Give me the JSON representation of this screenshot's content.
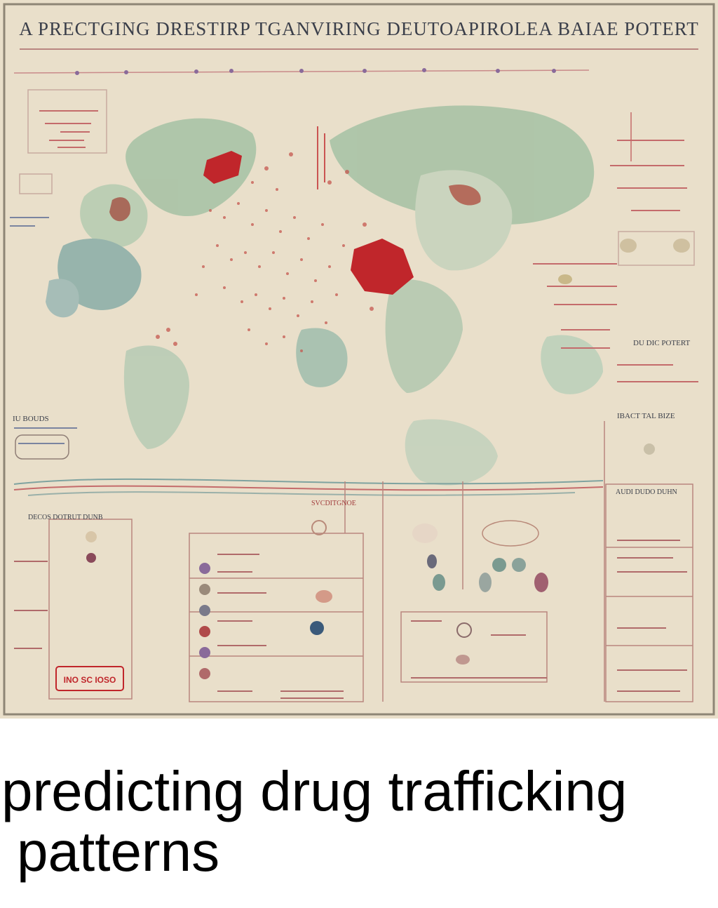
{
  "poster": {
    "title": "A PRECTGING DRESTIRP TGANVIRING DEUTOAPIROLEA BAIAE POTERT",
    "labels": {
      "legend_top_right": "DU DIC POTERT",
      "legend_right_mid": "IBACT TAL BIZE",
      "legend_left_mid": "IU BOUDS",
      "legend_bottom_left": "DECOS DOTRUT DUNB",
      "legend_bottom_center": "SVCDITGNOE",
      "legend_bottom_right": "AUDI DUDO DUHN",
      "stamp_text": "INO SC IOSO"
    },
    "colors": {
      "paper": "#e9dfca",
      "land_green": "#a9c3a6",
      "land_teal": "#8fb0a9",
      "accent_red": "#c0262b",
      "ink_rose": "#c46b6b",
      "ink_dark": "#3b3f4a"
    }
  },
  "caption": {
    "line1": "predicting drug trafficking",
    "line2": "patterns"
  }
}
